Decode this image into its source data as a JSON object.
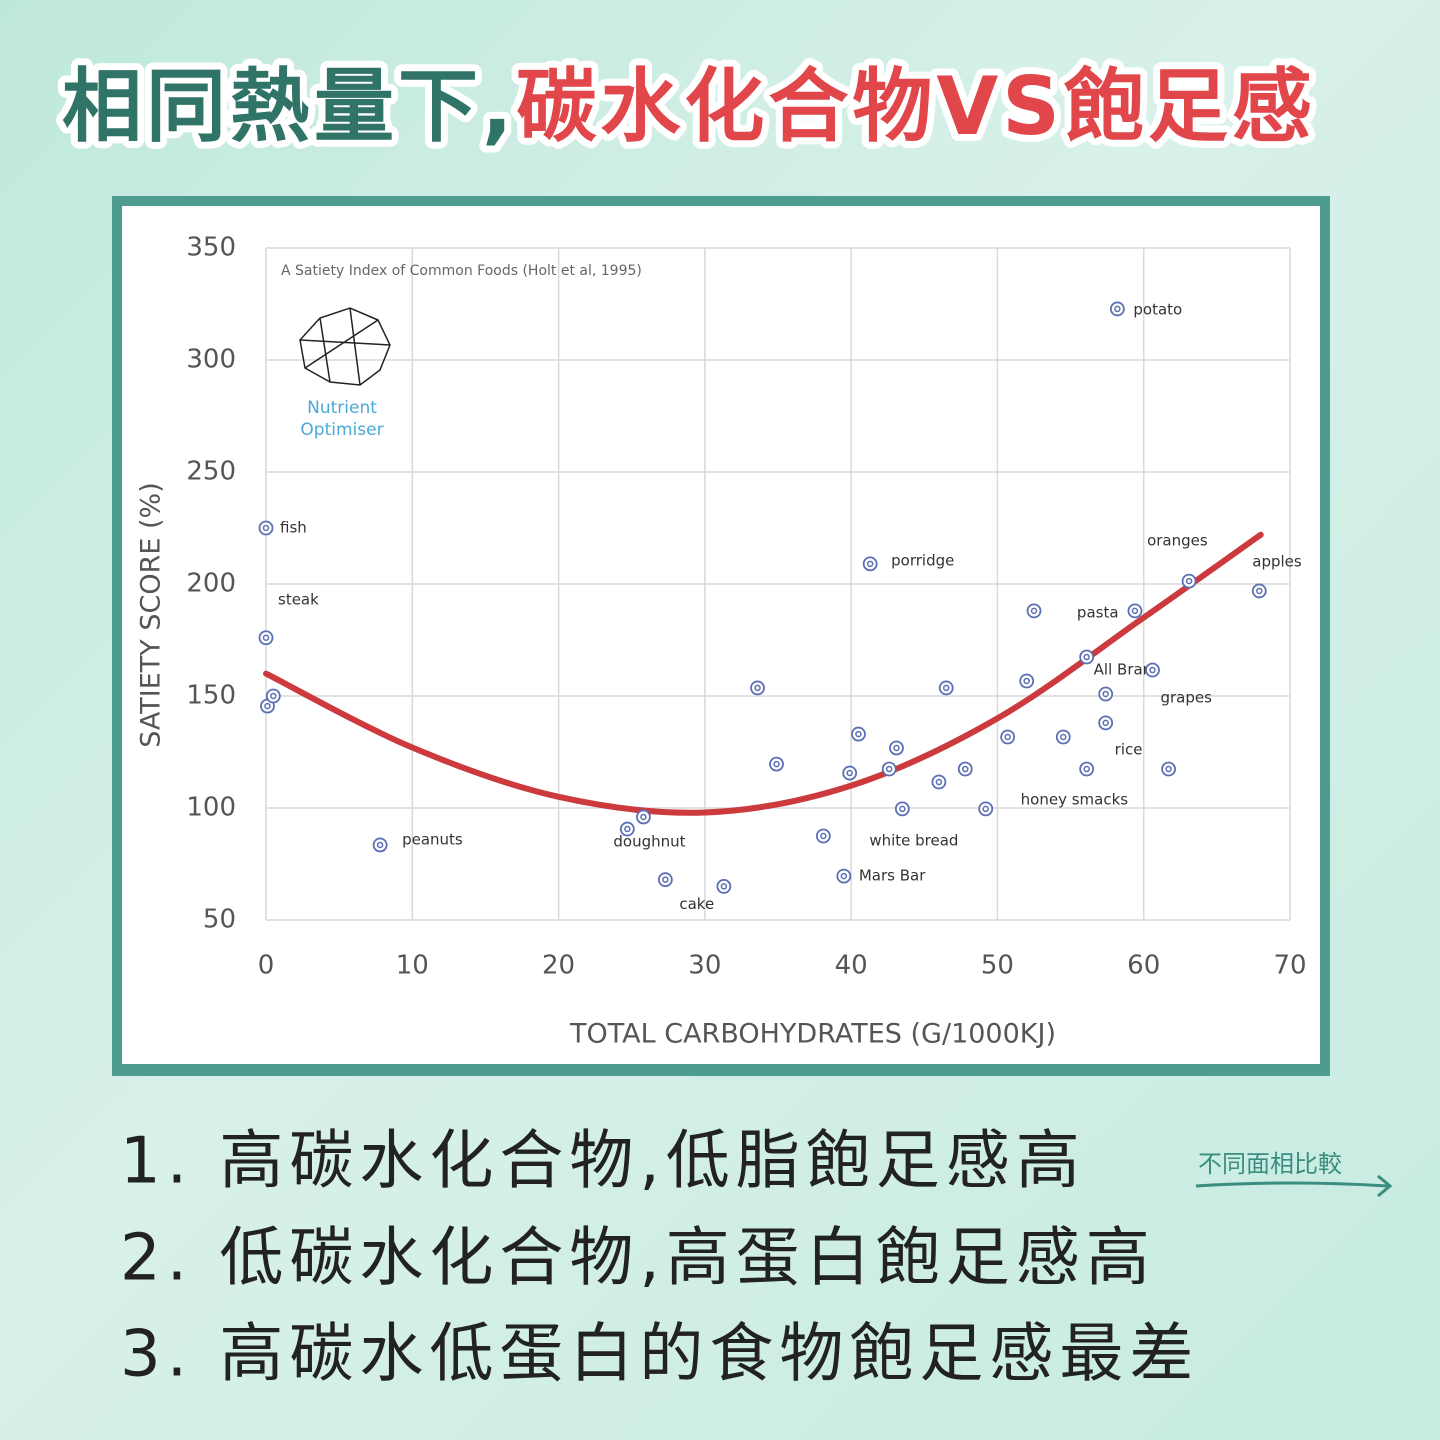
{
  "header": {
    "title_part1": "相同熱量下,",
    "title_part2": "碳水化合物VS飽足感"
  },
  "chart_data": {
    "type": "scatter",
    "source": "A Satiety Index of Common Foods (Holt et al, 1995)",
    "logo_text": [
      "Nutrient",
      "Optimiser"
    ],
    "x_label": "TOTAL CARBOHYDRATES (G/1000KJ)",
    "y_label": "SATIETY SCORE (%)",
    "xlim": [
      0,
      70
    ],
    "xticks": [
      0,
      10,
      20,
      30,
      40,
      50,
      60,
      70
    ],
    "ylim": [
      50,
      350
    ],
    "yticks": [
      50,
      100,
      150,
      200,
      250,
      300,
      350
    ],
    "grid": true,
    "color": "#5b6fb5",
    "x": [
      0,
      0,
      0.1,
      0.5,
      7.8,
      24.7,
      25.8,
      27.3,
      31.3,
      33.6,
      34.9,
      38.1,
      39.5,
      39.9,
      40.5,
      41.3,
      42.6,
      43.1,
      43.5,
      46,
      46.5,
      47.8,
      49.2,
      50.7,
      52,
      52.5,
      54.5,
      56.1,
      56.1,
      57.4,
      57.4,
      59.4,
      60.6,
      61.7,
      63.1,
      67.9,
      58.2
    ],
    "values": [
      225,
      176,
      145.5,
      150,
      83.5,
      90.6,
      96,
      68,
      65,
      153.6,
      119.6,
      87.5,
      69.6,
      115.6,
      133,
      209,
      117.4,
      126.8,
      99.6,
      111.6,
      153.6,
      117.4,
      99.6,
      131.7,
      156.7,
      188,
      131.7,
      117.4,
      167.4,
      150.9,
      138,
      188,
      161.6,
      117.4,
      201.3,
      196.9,
      322.8
    ],
    "point_labels": [
      "fish",
      "steak",
      null,
      null,
      "peanuts",
      null,
      "doughnut",
      "cake",
      null,
      null,
      null,
      null,
      "Mars Bar",
      null,
      null,
      "porridge",
      null,
      null,
      "white bread",
      null,
      null,
      null,
      null,
      "honey smacks",
      null,
      null,
      null,
      null,
      null,
      "All Bran",
      "rice",
      "pasta",
      "grapes",
      null,
      "oranges",
      "apples",
      "potato"
    ],
    "trend": {
      "color": "#cc3a3e",
      "x": [
        0,
        10,
        20,
        30,
        40,
        50,
        60,
        68
      ],
      "values": [
        160,
        127,
        105,
        98,
        110,
        140,
        185,
        222
      ]
    }
  },
  "notes": [
    "1. 高碳水化合物,低脂飽足感高",
    "2. 低碳水化合物,高蛋白飽足感高",
    "3. 高碳水低蛋白的食物飽足感最差"
  ],
  "button": "不同面相比較"
}
